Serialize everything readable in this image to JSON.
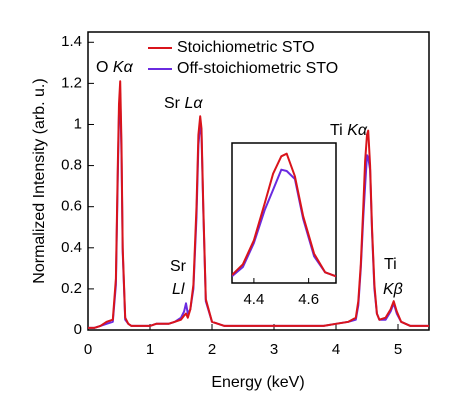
{
  "chart_data": {
    "type": "line",
    "xlabel": "Energy (keV)",
    "ylabel": "Normalized Intensity (arb. u.)",
    "x": [
      0,
      0.1,
      0.2,
      0.3,
      0.4,
      0.45,
      0.48,
      0.5,
      0.52,
      0.54,
      0.56,
      0.6,
      0.65,
      0.7,
      0.8,
      0.9,
      1.0,
      1.1,
      1.2,
      1.3,
      1.4,
      1.5,
      1.55,
      1.58,
      1.61,
      1.65,
      1.7,
      1.75,
      1.78,
      1.81,
      1.83,
      1.86,
      1.9,
      2.0,
      2.2,
      2.4,
      2.6,
      2.8,
      3.0,
      3.2,
      3.4,
      3.6,
      3.8,
      4.0,
      4.2,
      4.32,
      4.36,
      4.4,
      4.44,
      4.47,
      4.5,
      4.52,
      4.55,
      4.58,
      4.62,
      4.66,
      4.7,
      4.8,
      4.88,
      4.93,
      4.98,
      5.05,
      5.2,
      5.35,
      5.5
    ],
    "series": [
      {
        "name": "Stoichiometric STO",
        "color": "#d9141b",
        "values": [
          0.01,
          0.01,
          0.02,
          0.04,
          0.05,
          0.25,
          0.8,
          1.1,
          1.21,
          0.9,
          0.4,
          0.06,
          0.03,
          0.02,
          0.02,
          0.02,
          0.02,
          0.03,
          0.03,
          0.03,
          0.04,
          0.05,
          0.07,
          0.08,
          0.06,
          0.1,
          0.22,
          0.6,
          0.95,
          1.04,
          0.98,
          0.6,
          0.15,
          0.04,
          0.02,
          0.02,
          0.02,
          0.02,
          0.02,
          0.02,
          0.02,
          0.02,
          0.02,
          0.03,
          0.04,
          0.06,
          0.14,
          0.32,
          0.6,
          0.82,
          0.95,
          0.97,
          0.8,
          0.5,
          0.22,
          0.08,
          0.05,
          0.06,
          0.1,
          0.14,
          0.09,
          0.04,
          0.02,
          0.02,
          0.02
        ]
      },
      {
        "name": "Off-stoichiometric STO",
        "color": "#6a2be0",
        "values": [
          0.01,
          0.01,
          0.02,
          0.03,
          0.04,
          0.22,
          0.75,
          1.05,
          1.15,
          0.85,
          0.38,
          0.05,
          0.03,
          0.02,
          0.02,
          0.02,
          0.02,
          0.03,
          0.03,
          0.03,
          0.04,
          0.06,
          0.09,
          0.13,
          0.08,
          0.1,
          0.2,
          0.55,
          0.9,
          1.0,
          0.95,
          0.58,
          0.14,
          0.04,
          0.02,
          0.02,
          0.02,
          0.02,
          0.02,
          0.02,
          0.02,
          0.02,
          0.02,
          0.03,
          0.04,
          0.05,
          0.12,
          0.3,
          0.55,
          0.7,
          0.85,
          0.84,
          0.78,
          0.48,
          0.2,
          0.08,
          0.05,
          0.05,
          0.09,
          0.13,
          0.08,
          0.04,
          0.02,
          0.02,
          0.02
        ]
      }
    ],
    "xlim": [
      0,
      5.5
    ],
    "xticks": [
      0,
      1,
      2,
      3,
      4,
      5
    ],
    "ylim": [
      0,
      1.45
    ],
    "yticks": [
      0,
      0.2,
      0.4,
      0.6,
      0.8,
      1,
      1.2,
      1.4
    ],
    "legend": "top",
    "annotations": [
      {
        "element": "O",
        "line": "Kα"
      },
      {
        "element": "Sr",
        "line": "Lα"
      },
      {
        "element": "Sr",
        "line": "Ll"
      },
      {
        "element": "Ti",
        "line": "Kα"
      },
      {
        "element": "Ti",
        "line": "Kβ"
      }
    ],
    "inset": {
      "xlim": [
        4.32,
        4.7
      ],
      "ylim": [
        0,
        1.05
      ],
      "xticks": [
        4.4,
        4.6
      ]
    }
  }
}
